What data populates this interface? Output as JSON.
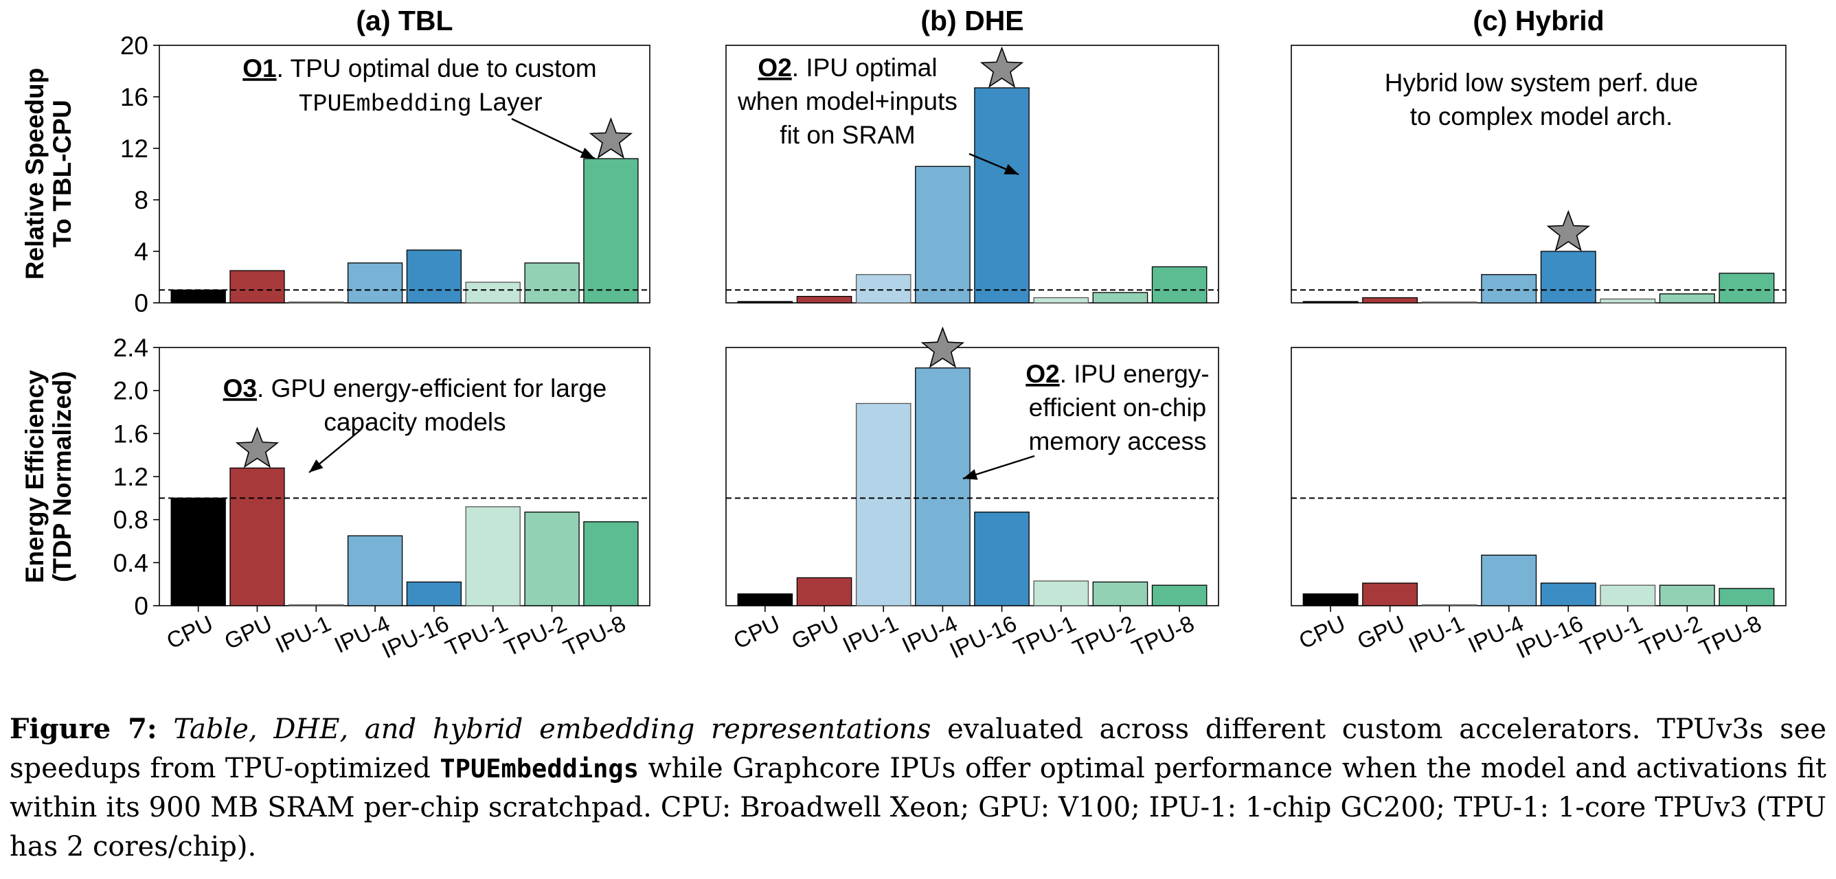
{
  "colors": {
    "CPU": "#000000",
    "GPU": "#a8393b",
    "IPU-1": "#b3d4e8",
    "IPU-4": "#78b2d4",
    "IPU-16": "#3c8dc3",
    "TPU-1": "#c4e6d6",
    "TPU-2": "#93d1b5",
    "TPU-8": "#5cbc92",
    "star": "#8c8c8c",
    "reference_line": "#000000"
  },
  "row_labels": {
    "speedup": [
      "Relative Speedup",
      "To TBL-CPU"
    ],
    "energy": [
      "Energy Efficiency",
      "(TDP Normalized)"
    ]
  },
  "annotation_markers": [
    "O1",
    "O2",
    "O3"
  ],
  "chart_data": [
    {
      "type": "bar",
      "panel": "(a) TBL",
      "title": "(a) TBL",
      "metric": "speedup",
      "categories": [
        "CPU",
        "GPU",
        "IPU-1",
        "IPU-4",
        "IPU-16",
        "TPU-1",
        "TPU-2",
        "TPU-8"
      ],
      "values": [
        1.0,
        2.5,
        0,
        3.1,
        4.1,
        1.6,
        3.1,
        11.2
      ],
      "ylim": [
        0,
        20
      ],
      "yticks": [
        "0",
        "4",
        "8",
        "12",
        "16",
        "20"
      ],
      "reference_line": 1.0,
      "star_index": 7,
      "annotation": {
        "marker": "O1",
        "lines": [
          ". TPU optimal due to custom",
          "TPUEmbedding",
          " Layer"
        ]
      }
    },
    {
      "type": "bar",
      "panel": "(b) DHE",
      "title": "(b) DHE",
      "metric": "speedup",
      "categories": [
        "CPU",
        "GPU",
        "IPU-1",
        "IPU-4",
        "IPU-16",
        "TPU-1",
        "TPU-2",
        "TPU-8"
      ],
      "values": [
        0.1,
        0.5,
        2.2,
        10.6,
        16.7,
        0.4,
        0.8,
        2.8
      ],
      "ylim": [
        0,
        20
      ],
      "yticks": [
        "0",
        "4",
        "8",
        "12",
        "16",
        "20"
      ],
      "reference_line": 1.0,
      "star_index": 4,
      "annotation": {
        "marker": "O2",
        "lines": [
          ". IPU optimal",
          "when model+inputs",
          "fit on SRAM"
        ]
      }
    },
    {
      "type": "bar",
      "panel": "(c) Hybrid",
      "title": "(c) Hybrid",
      "metric": "speedup",
      "categories": [
        "CPU",
        "GPU",
        "IPU-1",
        "IPU-4",
        "IPU-16",
        "TPU-1",
        "TPU-2",
        "TPU-8"
      ],
      "values": [
        0.1,
        0.4,
        0,
        2.2,
        4.0,
        0.3,
        0.7,
        2.3
      ],
      "ylim": [
        0,
        20
      ],
      "yticks": [
        "0",
        "4",
        "8",
        "12",
        "16",
        "20"
      ],
      "reference_line": 1.0,
      "star_index": 4,
      "annotation": {
        "lines": [
          "Hybrid low system perf. due",
          "to complex model arch."
        ]
      }
    },
    {
      "type": "bar",
      "panel": "(a) TBL",
      "metric": "energy",
      "categories": [
        "CPU",
        "GPU",
        "IPU-1",
        "IPU-4",
        "IPU-16",
        "TPU-1",
        "TPU-2",
        "TPU-8"
      ],
      "values": [
        1.0,
        1.28,
        0.005,
        0.65,
        0.22,
        0.92,
        0.87,
        0.78
      ],
      "ylim": [
        0,
        2.4
      ],
      "yticks": [
        "0",
        "0.4",
        "0.8",
        "1.2",
        "1.6",
        "2.0",
        "2.4"
      ],
      "reference_line": 1.0,
      "star_index": 1,
      "annotation": {
        "marker": "O3",
        "lines": [
          ". GPU energy-efficient for large",
          "capacity models"
        ]
      }
    },
    {
      "type": "bar",
      "panel": "(b) DHE",
      "metric": "energy",
      "categories": [
        "CPU",
        "GPU",
        "IPU-1",
        "IPU-4",
        "IPU-16",
        "TPU-1",
        "TPU-2",
        "TPU-8"
      ],
      "values": [
        0.11,
        0.26,
        1.88,
        2.21,
        0.87,
        0.23,
        0.22,
        0.19
      ],
      "ylim": [
        0,
        2.4
      ],
      "yticks": [
        "0",
        "0.4",
        "0.8",
        "1.2",
        "1.6",
        "2.0",
        "2.4"
      ],
      "reference_line": 1.0,
      "star_index": 3,
      "annotation": {
        "marker": "O2",
        "lines": [
          ". IPU energy-",
          "efficient on-chip",
          "memory access"
        ]
      }
    },
    {
      "type": "bar",
      "panel": "(c) Hybrid",
      "metric": "energy",
      "categories": [
        "CPU",
        "GPU",
        "IPU-1",
        "IPU-4",
        "IPU-16",
        "TPU-1",
        "TPU-2",
        "TPU-8"
      ],
      "values": [
        0.11,
        0.21,
        0.005,
        0.47,
        0.21,
        0.19,
        0.19,
        0.16
      ],
      "ylim": [
        0,
        2.4
      ],
      "yticks": [
        "0",
        "0.4",
        "0.8",
        "1.2",
        "1.6",
        "2.0",
        "2.4"
      ],
      "reference_line": 1.0,
      "star_index": null
    }
  ],
  "caption": {
    "label": "Figure 7:",
    "italic": "Table, DHE, and hybrid embedding representations",
    "text1": " evaluated across different custom accelerators. TPUv3s see speedups from TPU-optimized ",
    "mono": "TPUEmbeddings",
    "text2": " while Graphcore IPUs offer optimal performance when the model and activations fit within its 900 MB SRAM per-chip scratchpad. CPU: Broadwell Xeon; GPU: V100; IPU-1: 1-chip GC200; TPU-1: 1-core TPUv3 (TPU has 2 cores/chip)."
  }
}
